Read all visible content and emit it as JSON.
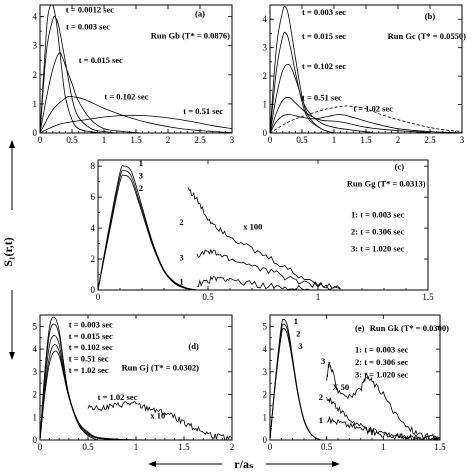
{
  "figure": {
    "ylabel": "S₁(r,t)",
    "xlabel": "r/aₛ"
  },
  "chart_data": [
    {
      "id": "a",
      "type": "line",
      "panel": "(a)",
      "run_label": "Run Gb (T* = 0.0876)",
      "xlim": [
        0,
        3
      ],
      "ylim": [
        0,
        4.4
      ],
      "xticks": [
        0,
        0.5,
        1,
        1.5,
        2,
        2.5,
        3
      ],
      "xticklabels": [
        "0",
        "0.5",
        "1",
        "1.5",
        "2",
        "2.5",
        "3"
      ],
      "yticks": [
        0,
        1,
        2,
        3,
        4
      ],
      "yticklabels": [
        "0",
        "1",
        "2",
        "3",
        "4"
      ],
      "annotations": [
        "t = 0.0012 sec",
        "t = 0.003 sec",
        "t = 0.015 sec",
        "t = 0.102 sec",
        "t = 0.51 sec"
      ],
      "series": [
        {
          "name": "t = 0.0012 sec",
          "x": [
            0,
            0.1,
            0.15,
            0.2,
            0.25,
            0.3,
            0.35,
            0.4,
            0.5,
            0.6,
            0.8,
            1.0
          ],
          "y": [
            0,
            3.5,
            4.3,
            4.4,
            3.9,
            3.0,
            2.0,
            1.2,
            0.45,
            0.15,
            0.04,
            0
          ]
        },
        {
          "name": "t = 0.003 sec",
          "x": [
            0,
            0.1,
            0.2,
            0.25,
            0.3,
            0.4,
            0.5,
            0.6,
            0.8,
            1.0,
            1.2
          ],
          "y": [
            0,
            2.8,
            3.9,
            3.95,
            3.6,
            2.4,
            1.2,
            0.55,
            0.15,
            0.05,
            0
          ]
        },
        {
          "name": "t = 0.015 sec",
          "x": [
            0,
            0.1,
            0.2,
            0.3,
            0.35,
            0.4,
            0.5,
            0.6,
            0.8,
            1.0,
            1.3,
            1.6
          ],
          "y": [
            0,
            1.2,
            2.2,
            2.75,
            2.6,
            2.3,
            1.7,
            1.1,
            0.45,
            0.15,
            0.05,
            0
          ]
        },
        {
          "name": "t = 0.102 sec",
          "x": [
            0,
            0.2,
            0.4,
            0.5,
            0.7,
            1.0,
            1.3,
            1.7,
            2.2,
            2.7,
            3.0
          ],
          "y": [
            0,
            0.8,
            1.2,
            1.25,
            1.15,
            0.85,
            0.6,
            0.35,
            0.15,
            0.05,
            0.02
          ]
        },
        {
          "name": "t = 0.51 sec",
          "x": [
            0,
            0.3,
            0.7,
            1.0,
            1.3,
            1.6,
            2.0,
            2.4,
            2.7,
            3.0
          ],
          "y": [
            0,
            0.3,
            0.45,
            0.55,
            0.6,
            0.6,
            0.52,
            0.38,
            0.25,
            0.15
          ]
        }
      ]
    },
    {
      "id": "b",
      "type": "line",
      "panel": "(b)",
      "run_label": "Run Gc (T* = 0.0550)",
      "xlim": [
        0,
        3
      ],
      "ylim": [
        0,
        4.5
      ],
      "xticks": [
        0,
        0.5,
        1,
        1.5,
        2,
        2.5,
        3
      ],
      "xticklabels": [
        "0",
        "0.5",
        "1",
        "1.5",
        "2",
        "2.5",
        "3"
      ],
      "yticks": [
        0,
        1,
        2,
        3,
        4
      ],
      "yticklabels": [
        "0",
        "1",
        "2",
        "3",
        "4"
      ],
      "annotations": [
        "t = 0.003 sec",
        "t = 0.015 sec",
        "t = 0.102 sec",
        "t = 0.51 sec",
        "t = 1.02 sec"
      ],
      "series": [
        {
          "name": "t = 0.003 sec",
          "x": [
            0,
            0.1,
            0.2,
            0.25,
            0.3,
            0.4,
            0.5,
            0.6,
            0.8,
            1.0
          ],
          "y": [
            0,
            3.0,
            4.3,
            4.4,
            4.0,
            2.6,
            1.3,
            0.6,
            0.15,
            0
          ]
        },
        {
          "name": "t = 0.015 sec",
          "x": [
            0,
            0.1,
            0.2,
            0.25,
            0.3,
            0.4,
            0.5,
            0.6,
            0.8,
            1.0
          ],
          "y": [
            0,
            2.2,
            3.4,
            3.5,
            3.2,
            2.1,
            1.1,
            0.5,
            0.15,
            0
          ]
        },
        {
          "name": "t = 0.102 sec",
          "x": [
            0,
            0.1,
            0.2,
            0.3,
            0.4,
            0.5,
            0.6,
            0.8,
            1.0,
            1.3,
            1.6
          ],
          "y": [
            0,
            1.3,
            2.2,
            2.4,
            1.9,
            1.2,
            0.75,
            0.35,
            0.2,
            0.1,
            0.02
          ]
        },
        {
          "name": "t = 0.51 sec",
          "x": [
            0,
            0.1,
            0.2,
            0.3,
            0.4,
            0.6,
            0.8,
            1.0,
            1.2,
            1.5,
            2.0,
            2.5
          ],
          "y": [
            0,
            0.7,
            1.15,
            1.25,
            1.05,
            0.65,
            0.45,
            0.42,
            0.35,
            0.2,
            0.08,
            0.02
          ]
        },
        {
          "name": "t = 1.02 sec",
          "x": [
            0,
            0.1,
            0.2,
            0.3,
            0.5,
            0.7,
            0.9,
            1.1,
            1.3,
            1.6,
            2.0,
            2.5,
            3.0
          ],
          "y": [
            0,
            0.4,
            0.6,
            0.65,
            0.55,
            0.5,
            0.58,
            0.65,
            0.55,
            0.35,
            0.15,
            0.05,
            0.01
          ]
        },
        {
          "name": "t = 1.02 sec (dashed)",
          "dashed": true,
          "x": [
            0,
            0.3,
            0.6,
            0.9,
            1.2,
            1.5,
            1.8,
            2.2,
            2.6,
            3.0
          ],
          "y": [
            0,
            0.4,
            0.65,
            0.85,
            0.95,
            0.85,
            0.6,
            0.35,
            0.15,
            0.05
          ]
        }
      ]
    },
    {
      "id": "c",
      "type": "line",
      "panel": "(c)",
      "run_label": "Run Gg (T* = 0.0313)",
      "xlim": [
        0,
        1.5
      ],
      "ylim": [
        0,
        8.4
      ],
      "xticks": [
        0,
        0.5,
        1,
        1.5
      ],
      "xticklabels": [
        "0",
        "0.5",
        "1",
        "1.5"
      ],
      "yticks": [
        0,
        2,
        4,
        6,
        8
      ],
      "yticklabels": [
        "0",
        "2",
        "4",
        "6",
        "8"
      ],
      "legend": [
        "1: t = 0.003 sec",
        "2: t = 0.306 sec",
        "3: t = 1.020 sec"
      ],
      "annotations": [
        "1",
        "3",
        "2",
        "x 100",
        "2",
        "3",
        "1"
      ],
      "series": [
        {
          "name": "1",
          "x": [
            0,
            0.05,
            0.1,
            0.12,
            0.15,
            0.18,
            0.2,
            0.25,
            0.3,
            0.35,
            0.4,
            0.45
          ],
          "y": [
            0,
            4.0,
            7.6,
            8.0,
            7.7,
            6.4,
            5.4,
            3.0,
            1.3,
            0.5,
            0.15,
            0
          ]
        },
        {
          "name": "3",
          "x": [
            0,
            0.05,
            0.1,
            0.12,
            0.15,
            0.18,
            0.2,
            0.25,
            0.3,
            0.35,
            0.4,
            0.45
          ],
          "y": [
            0,
            3.8,
            7.3,
            7.7,
            7.4,
            6.1,
            5.2,
            2.9,
            1.25,
            0.45,
            0.12,
            0
          ]
        },
        {
          "name": "2",
          "x": [
            0,
            0.05,
            0.1,
            0.12,
            0.15,
            0.18,
            0.2,
            0.25,
            0.3,
            0.35,
            0.4,
            0.45
          ],
          "y": [
            0,
            3.6,
            7.0,
            7.4,
            7.1,
            5.9,
            5.0,
            2.8,
            1.2,
            0.4,
            0.1,
            0
          ]
        },
        {
          "name": "2 (x 100)",
          "x": [
            0.41,
            0.45,
            0.5,
            0.55,
            0.6,
            0.7,
            0.8,
            0.9,
            1.0,
            1.1
          ],
          "y": [
            6.6,
            5.8,
            4.6,
            4.0,
            3.5,
            2.6,
            1.9,
            1.0,
            0.4,
            0.1
          ]
        },
        {
          "name": "3 (x 100)",
          "x": [
            0.45,
            0.5,
            0.55,
            0.6,
            0.7,
            0.8,
            0.9,
            1.0,
            1.1
          ],
          "y": [
            2.2,
            2.5,
            2.3,
            2.0,
            1.6,
            1.1,
            0.6,
            0.3,
            0.1
          ]
        },
        {
          "name": "1 (x 100)",
          "x": [
            0.45,
            0.5,
            0.55,
            0.6,
            0.7,
            0.8,
            0.9,
            1.0
          ],
          "y": [
            0.4,
            0.6,
            0.8,
            0.7,
            0.4,
            0.2,
            0.08,
            0
          ]
        }
      ]
    },
    {
      "id": "d",
      "type": "line",
      "panel": "(d)",
      "run_label": "Run Gj (T* = 0.0302)",
      "xlim": [
        0,
        2
      ],
      "ylim": [
        0,
        5.5
      ],
      "xticks": [
        0,
        0.5,
        1,
        1.5,
        2
      ],
      "xticklabels": [
        "0",
        "0.5",
        "1",
        "1.5",
        "2"
      ],
      "yticks": [
        0,
        1,
        2,
        3,
        4,
        5
      ],
      "yticklabels": [
        "0",
        "1",
        "2",
        "3",
        "4",
        "5"
      ],
      "annotations": [
        "t = 0.003 sec",
        "t = 0.015 sec",
        "t = 0.102 sec",
        "t = 0.51 sec",
        "t = 1.02 sec",
        "t = 1.02 sec",
        "x 10"
      ],
      "series": [
        {
          "name": "t = 0.003 sec",
          "x": [
            0,
            0.05,
            0.1,
            0.15,
            0.2,
            0.25,
            0.3,
            0.4,
            0.5,
            0.6
          ],
          "y": [
            0,
            3.0,
            5.0,
            5.4,
            4.8,
            3.3,
            2.0,
            0.7,
            0.2,
            0
          ]
        },
        {
          "name": "t = 0.015 sec",
          "x": [
            0,
            0.05,
            0.1,
            0.15,
            0.2,
            0.25,
            0.3,
            0.4,
            0.5,
            0.6
          ],
          "y": [
            0,
            2.8,
            4.7,
            5.1,
            4.6,
            3.2,
            2.0,
            0.7,
            0.2,
            0
          ]
        },
        {
          "name": "t = 0.102 sec",
          "x": [
            0,
            0.05,
            0.1,
            0.15,
            0.2,
            0.25,
            0.3,
            0.4,
            0.5,
            0.6,
            0.8
          ],
          "y": [
            0,
            2.5,
            4.2,
            4.6,
            4.2,
            3.0,
            1.9,
            0.7,
            0.25,
            0.08,
            0
          ]
        },
        {
          "name": "t = 0.51 sec",
          "x": [
            0,
            0.05,
            0.1,
            0.15,
            0.2,
            0.25,
            0.3,
            0.4,
            0.5,
            0.6,
            0.8,
            1.0
          ],
          "y": [
            0,
            2.2,
            3.7,
            4.2,
            3.9,
            2.9,
            1.9,
            0.75,
            0.3,
            0.1,
            0.03,
            0
          ]
        },
        {
          "name": "t = 1.02 sec",
          "x": [
            0,
            0.05,
            0.1,
            0.15,
            0.2,
            0.25,
            0.3,
            0.4,
            0.5,
            0.6,
            0.8,
            1.0,
            1.3
          ],
          "y": [
            0,
            2.0,
            3.4,
            3.9,
            3.7,
            2.8,
            1.9,
            0.8,
            0.35,
            0.12,
            0.04,
            0.01,
            0
          ]
        },
        {
          "name": "t = 1.02 sec (x 10)",
          "x": [
            0.5,
            0.6,
            0.7,
            0.8,
            0.9,
            1.0,
            1.1,
            1.2,
            1.3,
            1.4,
            1.5,
            1.6,
            1.7,
            1.8,
            1.9,
            2.0
          ],
          "y": [
            1.5,
            1.4,
            1.45,
            1.5,
            1.6,
            1.55,
            1.4,
            1.35,
            1.2,
            1.0,
            0.8,
            0.55,
            0.35,
            0.2,
            0.1,
            0.05
          ]
        }
      ]
    },
    {
      "id": "e",
      "type": "line",
      "panel": "(e)",
      "run_label": "Run Gk (T* = 0.0300)",
      "xlim": [
        0,
        1.5
      ],
      "ylim": [
        0,
        5.5
      ],
      "xticks": [
        0,
        0.5,
        1,
        1.5
      ],
      "xticklabels": [
        "0",
        "0.5",
        "1",
        "1.5"
      ],
      "yticks": [
        0,
        1,
        2,
        3,
        4,
        5
      ],
      "yticklabels": [
        "0",
        "1",
        "2",
        "3",
        "4",
        "5"
      ],
      "legend": [
        "1: t = 0.003 sec",
        "2: t = 0.306 sec",
        "3: t = 1.020 sec"
      ],
      "annotations": [
        "1",
        "2",
        "3",
        "X 50",
        "3",
        "2",
        "1"
      ],
      "series": [
        {
          "name": "1",
          "x": [
            0,
            0.05,
            0.1,
            0.12,
            0.15,
            0.18,
            0.2,
            0.25,
            0.3,
            0.35,
            0.4,
            0.45
          ],
          "y": [
            0,
            2.8,
            5.0,
            5.3,
            5.1,
            4.3,
            3.6,
            2.0,
            0.9,
            0.35,
            0.1,
            0
          ]
        },
        {
          "name": "2",
          "x": [
            0,
            0.05,
            0.1,
            0.12,
            0.15,
            0.18,
            0.2,
            0.25,
            0.3,
            0.35,
            0.4,
            0.45
          ],
          "y": [
            0,
            2.7,
            4.8,
            5.1,
            4.9,
            4.15,
            3.5,
            1.95,
            0.88,
            0.33,
            0.1,
            0
          ]
        },
        {
          "name": "3",
          "x": [
            0,
            0.05,
            0.1,
            0.12,
            0.15,
            0.18,
            0.2,
            0.25,
            0.3,
            0.35,
            0.4,
            0.45
          ],
          "y": [
            0,
            2.6,
            4.6,
            4.9,
            4.7,
            4.0,
            3.4,
            1.9,
            0.85,
            0.32,
            0.1,
            0
          ]
        },
        {
          "name": "3 (X 50)",
          "x": [
            0.5,
            0.52,
            0.55,
            0.6,
            0.7,
            0.8,
            0.85,
            0.9,
            1.0,
            1.1,
            1.2,
            1.3,
            1.4,
            1.5
          ],
          "y": [
            2.6,
            3.4,
            3.0,
            2.2,
            1.9,
            2.2,
            2.8,
            2.6,
            2.0,
            1.2,
            0.6,
            0.3,
            0.15,
            0.1
          ]
        },
        {
          "name": "2 (X 50)",
          "x": [
            0.5,
            0.55,
            0.6,
            0.7,
            0.8,
            0.9,
            1.0,
            1.1,
            1.2,
            1.3,
            1.4,
            1.5
          ],
          "y": [
            1.8,
            1.7,
            1.4,
            0.9,
            0.6,
            0.4,
            0.3,
            0.2,
            0.12,
            0.08,
            0.05,
            0.03
          ]
        },
        {
          "name": "1 (X 50)",
          "x": [
            0.5,
            0.6,
            0.7,
            0.8,
            0.9,
            1.0,
            1.1,
            1.2,
            1.3,
            1.4,
            1.5
          ],
          "y": [
            0.9,
            0.8,
            0.65,
            0.5,
            0.35,
            0.25,
            0.15,
            0.1,
            0.06,
            0.04,
            0.02
          ]
        }
      ]
    }
  ]
}
